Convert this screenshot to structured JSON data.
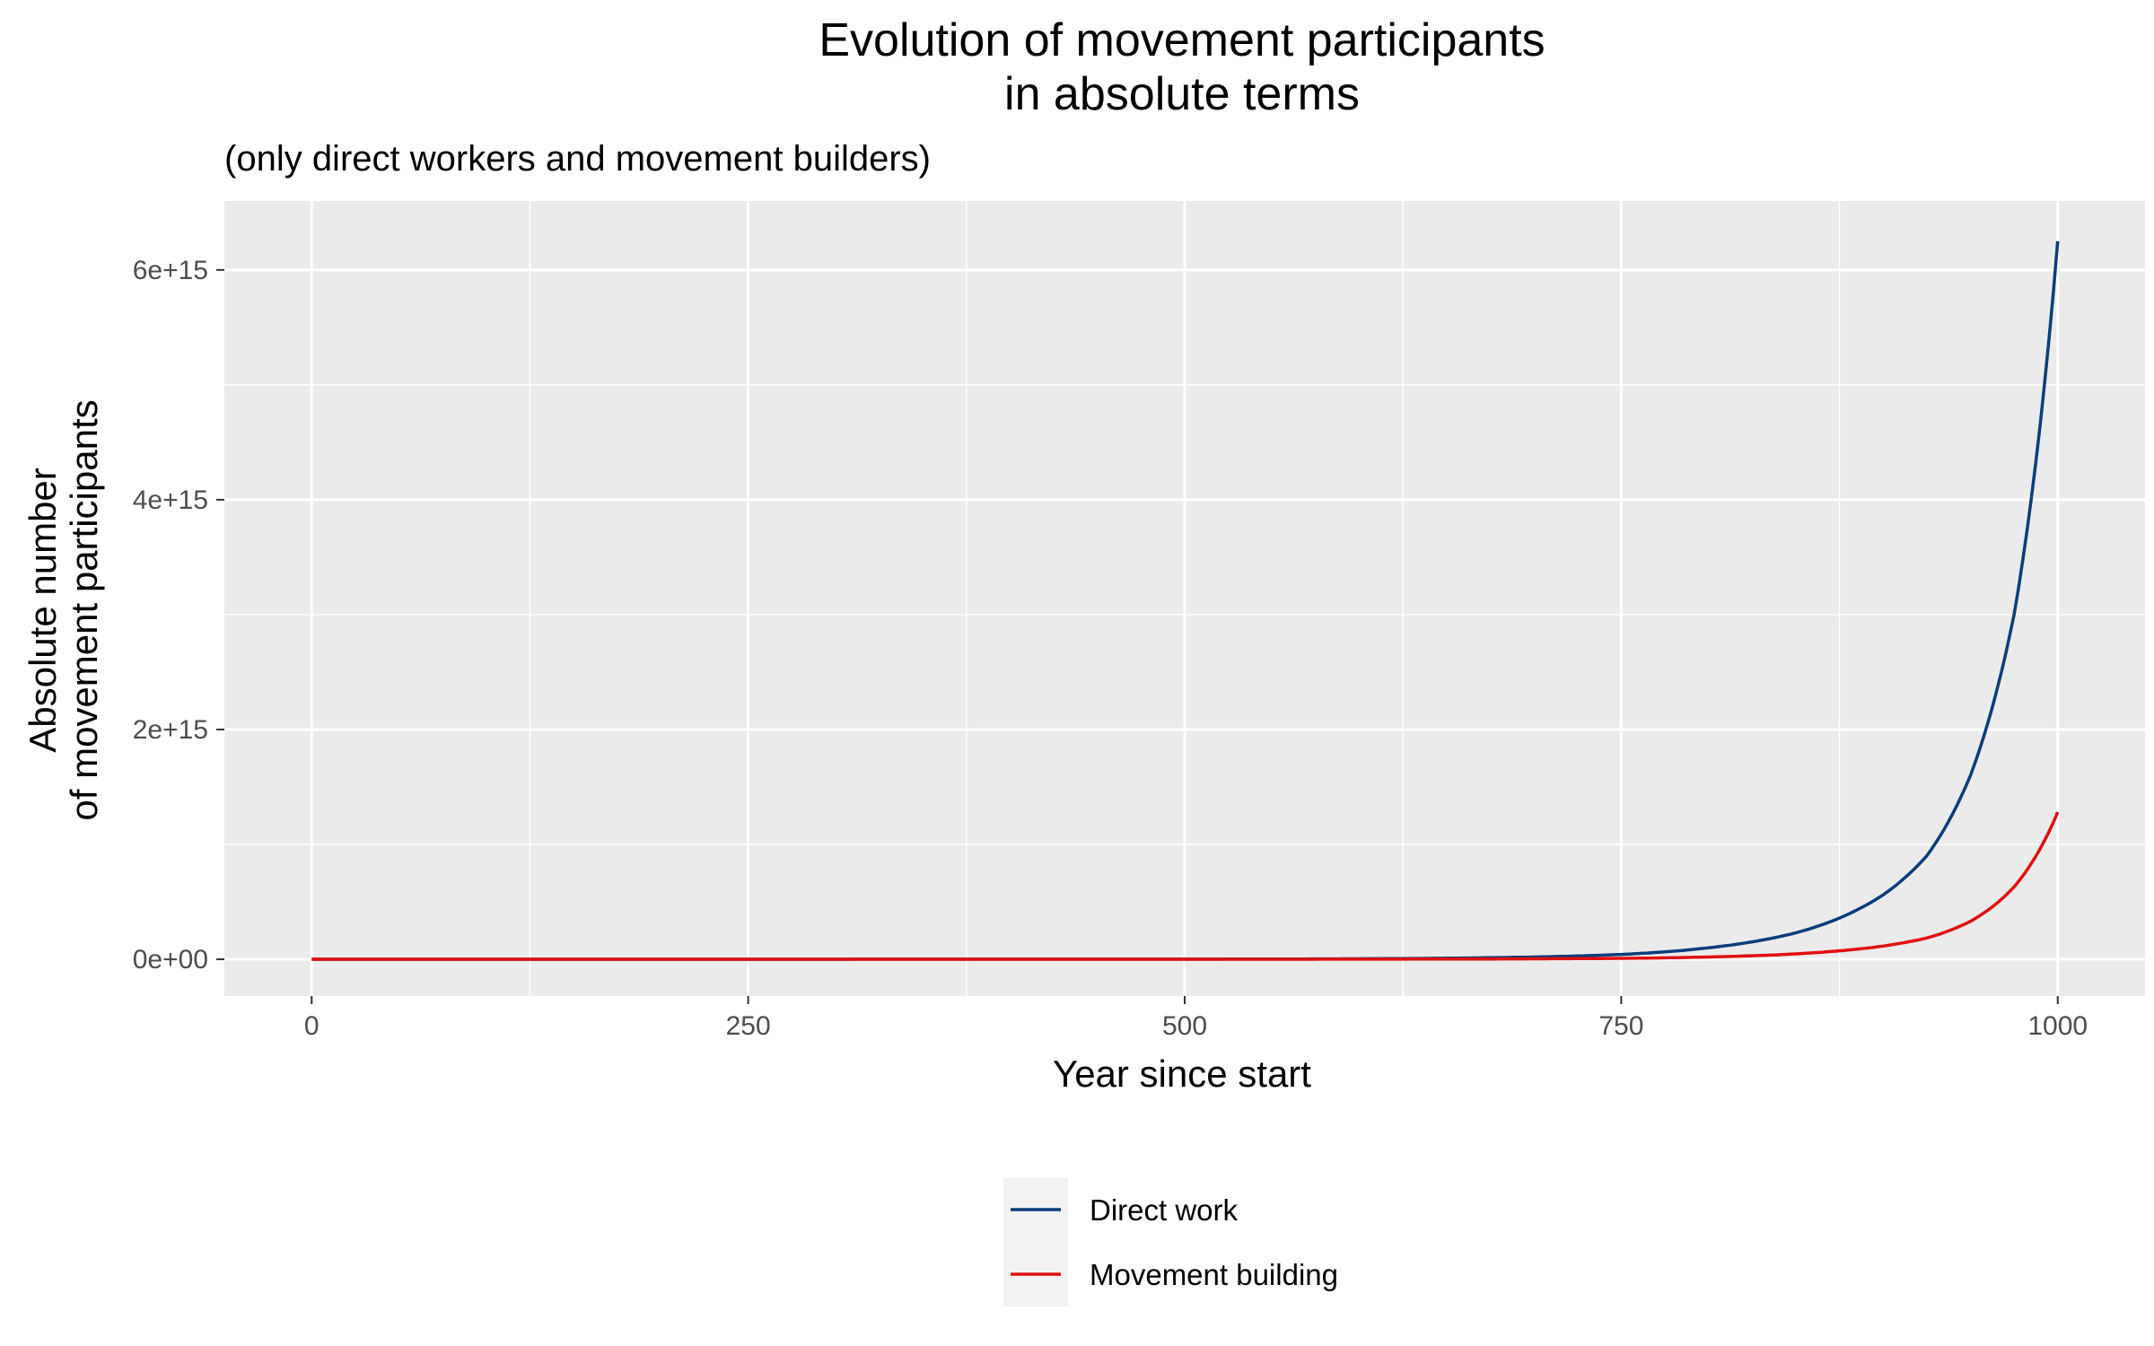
{
  "chart_data": {
    "type": "line",
    "title_lines": [
      "Evolution of movement participants",
      "in absolute terms"
    ],
    "subtitle": "(only direct workers and movement builders)",
    "xlabel": "Year since start",
    "ylabel_lines": [
      "Absolute number",
      "of movement participants"
    ],
    "xlim": [
      -50,
      1050
    ],
    "ylim": [
      -320000000000000.0,
      6600000000000000.0
    ],
    "x_ticks": [
      {
        "value": 0,
        "label": "0"
      },
      {
        "value": 250,
        "label": "250"
      },
      {
        "value": 500,
        "label": "500"
      },
      {
        "value": 750,
        "label": "750"
      },
      {
        "value": 1000,
        "label": "1000"
      }
    ],
    "y_ticks": [
      {
        "value": 0,
        "label": "0e+00"
      },
      {
        "value": 2000000000000000.0,
        "label": "2e+15"
      },
      {
        "value": 4000000000000000.0,
        "label": "4e+15"
      },
      {
        "value": 6000000000000000.0,
        "label": "6e+15"
      }
    ],
    "grid": true,
    "legend_position": "bottom",
    "panel_color": "#ebebeb",
    "series": [
      {
        "name": "Direct work",
        "color": "#0b3d7a",
        "x": [
          0,
          500,
          700,
          750,
          800,
          850,
          900,
          925,
          950,
          975,
          1000
        ],
        "y": [
          0,
          1000000000000.0,
          20000000000000.0,
          42000000000000.0,
          100000000000000.0,
          230000000000000.0,
          560000000000000.0,
          900000000000000.0,
          1600000000000000.0,
          3000000000000000.0,
          6250000000000000.0
        ]
      },
      {
        "name": "Movement building",
        "color": "#e0100f",
        "x": [
          0,
          500,
          700,
          750,
          800,
          850,
          900,
          925,
          950,
          975,
          1000
        ],
        "y": [
          0,
          200000000000.0,
          4000000000000.0,
          8000000000000.0,
          20000000000000.0,
          47000000000000.0,
          115000000000000.0,
          185000000000000.0,
          330000000000000.0,
          630000000000000.0,
          1280000000000000.0
        ]
      }
    ]
  }
}
